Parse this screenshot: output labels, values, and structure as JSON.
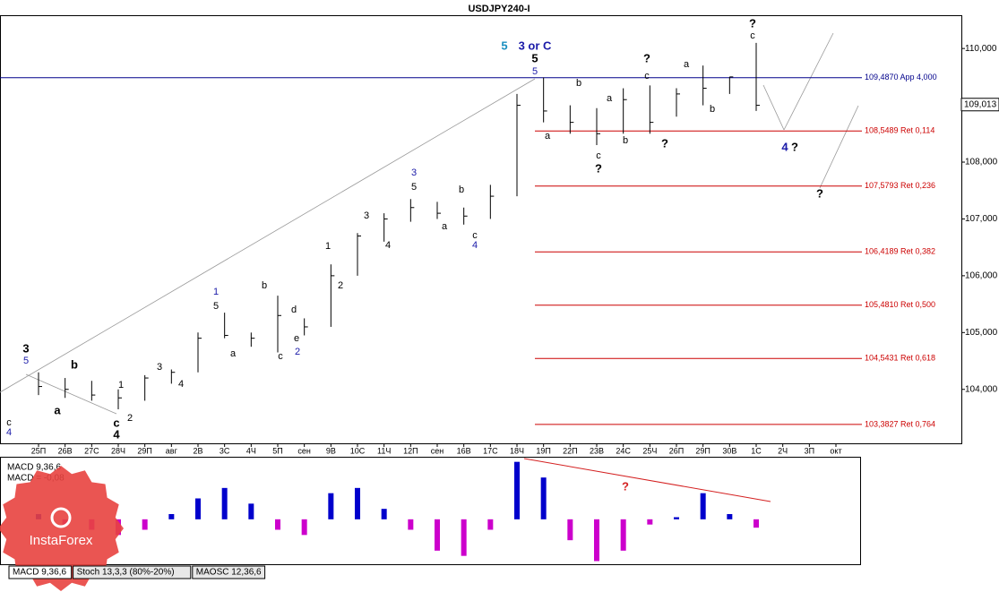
{
  "chart_data": {
    "type": "ohlc",
    "title": "USDJPY240-I",
    "categories": [
      "25П",
      "26В",
      "27С",
      "28Ч",
      "29П",
      "авг",
      "2В",
      "3С",
      "4Ч",
      "5П",
      "сен",
      "9В",
      "10С",
      "11Ч",
      "12П",
      "сен",
      "16В",
      "17С",
      "18Ч",
      "19П",
      "22П",
      "23В",
      "24С",
      "25Ч",
      "26П",
      "29П",
      "30В",
      "1С",
      "2Ч",
      "3П",
      "окт"
    ],
    "high": [
      104.3,
      104.2,
      104.15,
      104.0,
      104.25,
      104.35,
      105.0,
      105.35,
      105.0,
      105.65,
      105.25,
      106.2,
      106.75,
      107.1,
      107.35,
      107.3,
      107.2,
      107.6,
      109.2,
      109.49,
      109.0,
      108.95,
      109.3,
      109.35,
      109.3,
      109.7,
      109.5,
      110.1,
      null,
      null,
      null
    ],
    "low": [
      103.9,
      103.85,
      103.8,
      103.65,
      103.8,
      104.1,
      104.3,
      104.9,
      104.75,
      104.65,
      104.95,
      105.1,
      106.0,
      106.6,
      106.95,
      107.0,
      106.9,
      107.0,
      107.4,
      108.7,
      108.5,
      108.3,
      108.5,
      108.5,
      108.8,
      109.0,
      109.2,
      108.9,
      null,
      null,
      null
    ],
    "close": [
      104.05,
      104.0,
      103.9,
      103.85,
      104.2,
      104.3,
      104.9,
      104.95,
      104.9,
      105.3,
      105.1,
      106.0,
      106.7,
      107.0,
      107.2,
      107.1,
      107.05,
      107.4,
      109.0,
      108.9,
      108.7,
      108.5,
      109.1,
      108.7,
      109.2,
      109.3,
      109.5,
      109.0,
      null,
      null,
      null
    ],
    "color": "#000000",
    "ylim": [
      103.05,
      110.57
    ],
    "yticks": [
      {
        "value": 104,
        "label": "104,000"
      },
      {
        "value": 105,
        "label": "105,000"
      },
      {
        "value": 106,
        "label": "106,000"
      },
      {
        "value": 107,
        "label": "107,000"
      },
      {
        "value": 108,
        "label": "108,000"
      },
      {
        "value": 109,
        "label": "109,000"
      },
      {
        "value": 110,
        "label": "110,000"
      }
    ],
    "current_price": {
      "value": 109.013,
      "label": "109,013"
    },
    "levels": [
      {
        "value": 109.487,
        "label": "109,4870 App 4,000",
        "color": "#00008b"
      },
      {
        "value": 108.5489,
        "label": "108,5489 Ret 0,114",
        "color": "#cc0000"
      },
      {
        "value": 107.5793,
        "label": "107,5793 Ret 0,236",
        "color": "#cc0000"
      },
      {
        "value": 106.4189,
        "label": "106,4189 Ret 0,382",
        "color": "#cc0000"
      },
      {
        "value": 105.481,
        "label": "105,4810 Ret 0,500",
        "color": "#cc0000"
      },
      {
        "value": 104.5431,
        "label": "104,5431 Ret 0,618",
        "color": "#cc0000"
      },
      {
        "value": 103.3827,
        "label": "103,3827 Ret 0,764",
        "color": "#cc0000"
      }
    ],
    "annotations": [
      "3",
      "5",
      "b",
      "a",
      "c",
      "4",
      "4",
      "c",
      "1",
      "2",
      "3",
      "4",
      "1",
      "5",
      "b",
      "a",
      "c",
      "d",
      "e",
      "2",
      "1",
      "2",
      "3",
      "4",
      "3",
      "5",
      "b",
      "a",
      "c",
      "4",
      "5",
      "3 or C",
      "5",
      "5",
      "a",
      "b",
      "a",
      "c",
      "?",
      "b",
      "?",
      "c",
      "?",
      "a",
      "b",
      "?",
      "c",
      "4",
      "?",
      "?",
      "?"
    ],
    "macd": {
      "label": "MACD 9,36,6",
      "value_label": "MACD = -0,08",
      "values": [
        0.05,
        -0.05,
        -0.1,
        -0.15,
        -0.1,
        0.05,
        0.2,
        0.3,
        0.15,
        -0.1,
        -0.15,
        0.25,
        0.3,
        0.1,
        -0.1,
        -0.3,
        -0.35,
        -0.1,
        0.55,
        0.4,
        -0.2,
        -0.4,
        -0.3,
        -0.05,
        0.02,
        0.25,
        0.05,
        -0.08,
        null,
        null,
        null
      ],
      "ylim": [
        -0.43,
        0.59
      ],
      "positive_color": "#0000cc",
      "negative_color": "#cc00cc"
    },
    "tabs": [
      "MACD 9,36,6",
      "Stoch 13,3,3 (80%-20%)",
      "MAOSC 12,36,6"
    ],
    "logo": "InstaForex"
  }
}
